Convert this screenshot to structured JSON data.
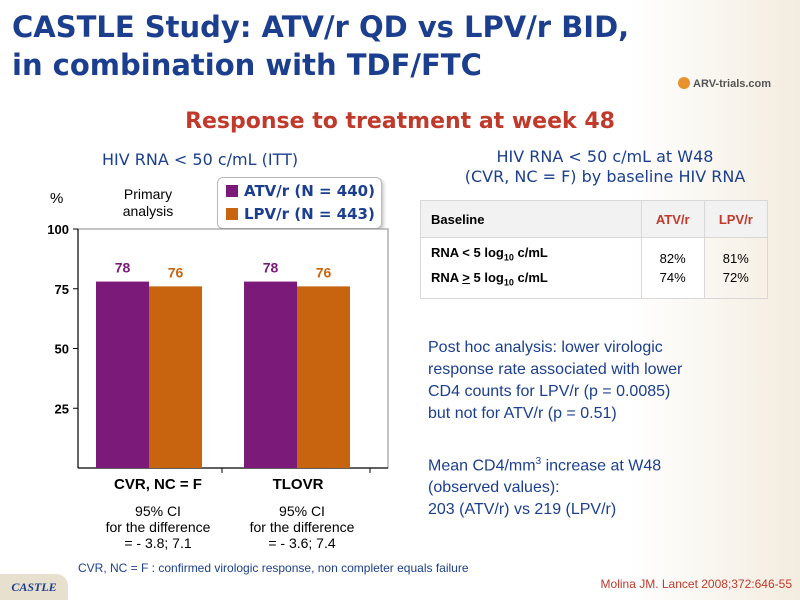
{
  "title": {
    "line1": "CASTLE Study: ATV/r QD vs LPV/r BID,",
    "line2": "in combination with TDF/FTC"
  },
  "logo": {
    "text": "ARV-trials.com"
  },
  "subtitle": "Response to treatment at week 48",
  "chart_title": "HIV RNA < 50 c/mL (ITT)",
  "colors": {
    "atv": "#7b1a78",
    "lpv": "#c86410",
    "title": "#1b3f8e",
    "accent": "#c0392b"
  },
  "chart_data": {
    "type": "bar",
    "title": "HIV RNA < 50 c/mL (ITT)",
    "ylabel": "%",
    "ylim": [
      0,
      100
    ],
    "yticks": [
      25,
      50,
      75,
      100
    ],
    "categories": [
      "CVR, NC = F",
      "TLOVR"
    ],
    "series": [
      {
        "name": "ATV/r (N = 440)",
        "values": [
          78,
          78
        ]
      },
      {
        "name": "LPV/r (N = 443)",
        "values": [
          76,
          76
        ]
      }
    ],
    "legend_position": "top-right",
    "annotations": {
      "primary_analysis": "Primary analysis",
      "ci": [
        {
          "line1": "95% CI",
          "line2": "for the difference",
          "line3": "= - 3.8; 7.1"
        },
        {
          "line1": "95% CI",
          "line2": "for the difference",
          "line3": "= - 3.6; 7.4"
        }
      ]
    }
  },
  "right_panel": {
    "title_line1": "HIV RNA < 50 c/mL at W48",
    "title_line2": "(CVR, NC = F) by baseline HIV RNA",
    "table": {
      "headers": [
        "Baseline",
        "ATV/r",
        "LPV/r"
      ],
      "rows": [
        {
          "label": "RNA < 5 log10 c/mL",
          "atv": "82%",
          "lpv": "81%"
        },
        {
          "label": "RNA > 5 log10 c/mL",
          "atv": "74%",
          "lpv": "72%"
        }
      ]
    }
  },
  "notes": {
    "posthoc": [
      "Post hoc analysis: lower virologic",
      "response rate associated with lower",
      "CD4 counts for LPV/r (p = 0.0085)",
      "but not for ATV/r (p = 0.51)"
    ],
    "cd4": [
      "Mean CD4/mm3 increase at W48",
      "(observed values):",
      "203 (ATV/r) vs 219 (LPV/r)"
    ]
  },
  "footnote": "CVR, NC = F : confirmed virologic response, non completer equals failure",
  "study_tag": "CASTLE",
  "reference": "Molina JM. Lancet 2008;372:646-55"
}
